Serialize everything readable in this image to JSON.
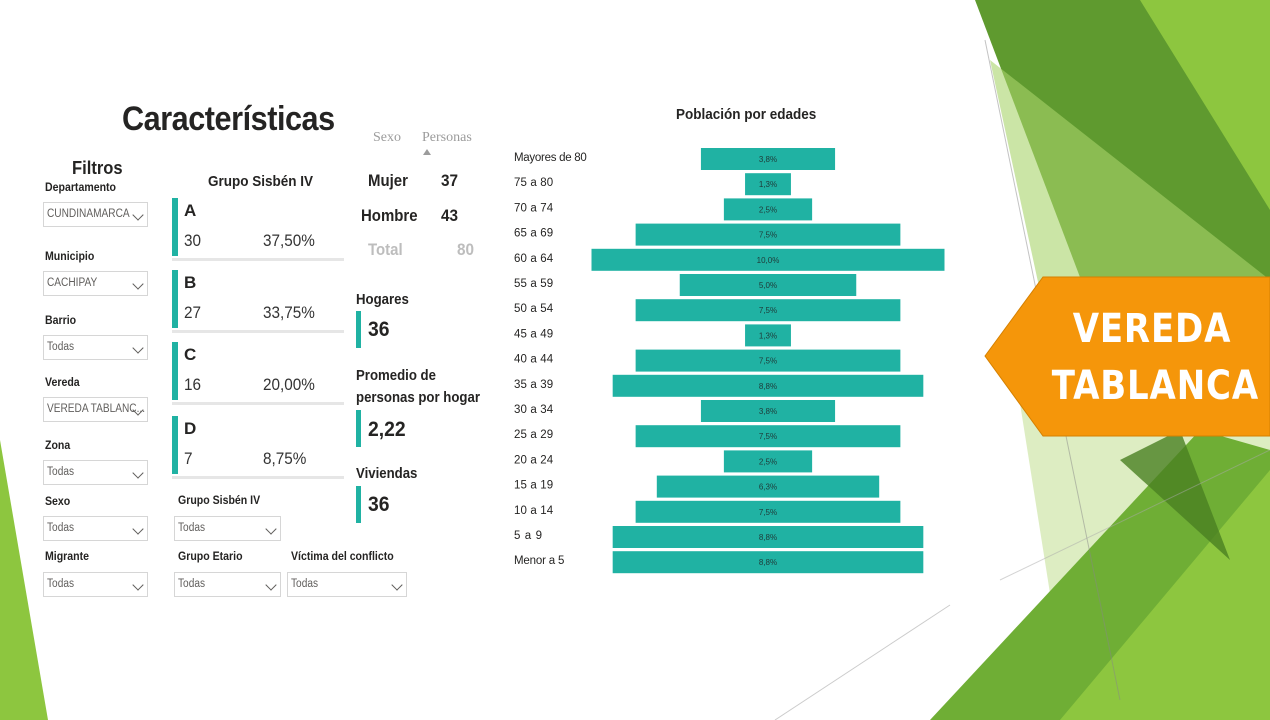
{
  "page_title": "Características",
  "filters": {
    "title": "Filtros",
    "items": [
      {
        "label": "Departamento",
        "value": "CUNDINAMARCA"
      },
      {
        "label": "Municipio",
        "value": "CACHIPAY"
      },
      {
        "label": "Barrio",
        "value": "Todas"
      },
      {
        "label": "Vereda",
        "value": "VEREDA TABLANC..."
      },
      {
        "label": "Zona",
        "value": "Todas"
      },
      {
        "label": "Sexo",
        "value": "Todas"
      },
      {
        "label": "Migrante",
        "value": "Todas"
      }
    ],
    "extra": [
      {
        "label": "Grupo Sisbén IV",
        "value": "Todas"
      },
      {
        "label": "Grupo Etario",
        "value": "Todas"
      },
      {
        "label": "Víctima del conflicto",
        "value": "Todas"
      }
    ]
  },
  "sisben": {
    "title": "Grupo Sisbén IV",
    "groups": [
      {
        "letter": "A",
        "count": "30",
        "pct": "37,50%"
      },
      {
        "letter": "B",
        "count": "27",
        "pct": "33,75%"
      },
      {
        "letter": "C",
        "count": "16",
        "pct": "20,00%"
      },
      {
        "letter": "D",
        "count": "7",
        "pct": "8,75%"
      }
    ]
  },
  "sex_table": {
    "col_sexo": "Sexo",
    "col_personas": "Personas",
    "rows": [
      {
        "label": "Mujer",
        "value": "37"
      },
      {
        "label": "Hombre",
        "value": "43"
      }
    ],
    "total_label": "Total",
    "total_value": "80"
  },
  "kpis": {
    "hogares_label": "Hogares",
    "hogares_value": "36",
    "promedio_line1": "Promedio de",
    "promedio_line2": "personas por hogar",
    "promedio_value": "2,22",
    "viviendas_label": "Viviendas",
    "viviendas_value": "36"
  },
  "tag": {
    "line1": "VEREDA",
    "line2": "TABLANCA"
  },
  "colors": {
    "accent": "#20b2a3",
    "tag": "#f5960a",
    "green_dark": "#5f9a2f",
    "green_light": "#8dc63f"
  },
  "chart_data": {
    "type": "bar",
    "orientation": "horizontal-centered",
    "title": "Población por edades",
    "categories": [
      "Mayores de 80",
      "75 a 80",
      "70 a 74",
      "65 a 69",
      "60 a 64",
      "55 a 59",
      "50 a 54",
      "45 a 49",
      "40 a 44",
      "35 a 39",
      "30 a 34",
      "25 a 29",
      "20 a 24",
      "15 a 19",
      "10 a 14",
      "5 a 9",
      "Menor a 5"
    ],
    "values": [
      3.8,
      1.3,
      2.5,
      7.5,
      10.0,
      5.0,
      7.5,
      1.3,
      7.5,
      8.8,
      3.8,
      7.5,
      2.5,
      6.3,
      7.5,
      8.8,
      8.8
    ],
    "labels": [
      "3,8%",
      "1,3%",
      "2,5%",
      "7,5%",
      "10,0%",
      "5,0%",
      "7,5%",
      "1,3%",
      "7,5%",
      "8,8%",
      "3,8%",
      "7,5%",
      "2,5%",
      "6,3%",
      "7,5%",
      "8,8%",
      "8,8%"
    ],
    "xlabel": "",
    "ylabel": "",
    "xlim": [
      0,
      10
    ]
  }
}
